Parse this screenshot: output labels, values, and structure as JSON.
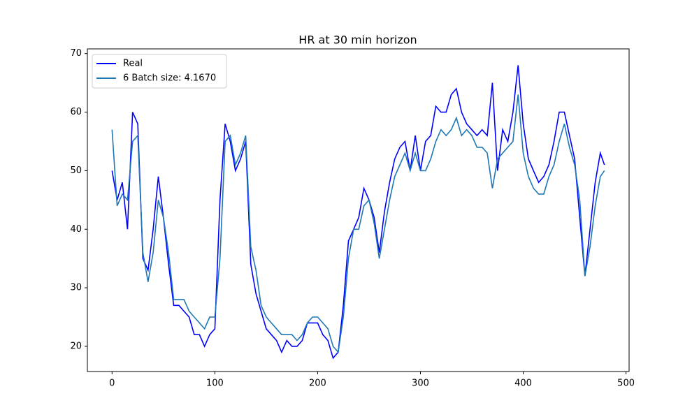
{
  "chart_data": {
    "type": "line",
    "title": "HR at 30 min horizon",
    "x": [
      0,
      5,
      10,
      15,
      20,
      25,
      30,
      35,
      40,
      45,
      50,
      55,
      60,
      65,
      70,
      75,
      80,
      85,
      90,
      95,
      100,
      105,
      110,
      115,
      120,
      125,
      130,
      135,
      140,
      145,
      150,
      155,
      160,
      165,
      170,
      175,
      180,
      185,
      190,
      195,
      200,
      205,
      210,
      215,
      220,
      225,
      230,
      235,
      240,
      245,
      250,
      255,
      260,
      265,
      270,
      275,
      280,
      285,
      290,
      295,
      300,
      305,
      310,
      315,
      320,
      325,
      330,
      335,
      340,
      345,
      350,
      355,
      360,
      365,
      370,
      375,
      380,
      385,
      390,
      395,
      400,
      405,
      410,
      415,
      420,
      425,
      430,
      435,
      440,
      445,
      450,
      455,
      460,
      465,
      470,
      475,
      479
    ],
    "series": [
      {
        "name": "Real",
        "color": "#0000ff",
        "values": [
          50,
          45,
          48,
          40,
          60,
          58,
          35,
          33,
          40,
          49,
          42,
          34,
          27,
          27,
          26,
          25,
          22,
          22,
          20,
          22,
          23,
          45,
          58,
          55,
          50,
          52,
          55,
          34,
          29,
          26,
          23,
          22,
          21,
          19,
          21,
          20,
          20,
          21,
          24,
          24,
          24,
          22,
          21,
          18,
          19,
          27,
          38,
          40,
          42,
          47,
          45,
          42,
          36,
          43,
          48,
          52,
          54,
          55,
          50,
          56,
          50,
          55,
          56,
          61,
          60,
          60,
          63,
          64,
          60,
          58,
          57,
          56,
          57,
          56,
          65,
          50,
          57,
          55,
          60,
          68,
          58,
          52,
          50,
          48,
          49,
          51,
          55,
          60,
          60,
          56,
          52,
          42,
          32,
          40,
          48,
          53,
          51
        ]
      },
      {
        "name": "6 Batch size: 4.1670",
        "color": "#1f77b4",
        "values": [
          57,
          44,
          46,
          45,
          55,
          56,
          36,
          31,
          36,
          45,
          42,
          36,
          28,
          28,
          28,
          26,
          25,
          24,
          23,
          25,
          25,
          35,
          55,
          56,
          51,
          53,
          56,
          37,
          33,
          27,
          25,
          24,
          23,
          22,
          22,
          22,
          21,
          22,
          24,
          25,
          25,
          24,
          23,
          20,
          19,
          25,
          35,
          40,
          40,
          44,
          45,
          41,
          35,
          40,
          45,
          49,
          51,
          53,
          50,
          53,
          50,
          50,
          52,
          55,
          57,
          56,
          57,
          59,
          56,
          57,
          56,
          54,
          54,
          53,
          47,
          52,
          53,
          54,
          55,
          63,
          53,
          49,
          47,
          46,
          46,
          49,
          51,
          55,
          58,
          54,
          51,
          45,
          32,
          37,
          44,
          49,
          50
        ]
      }
    ],
    "xlim": [
      -24,
      503
    ],
    "ylim": [
      15.7,
      70.8
    ],
    "xticks": [
      0,
      100,
      200,
      300,
      400,
      500
    ],
    "yticks": [
      20,
      30,
      40,
      50,
      60,
      70
    ],
    "grid": false,
    "legend": "upper left"
  }
}
